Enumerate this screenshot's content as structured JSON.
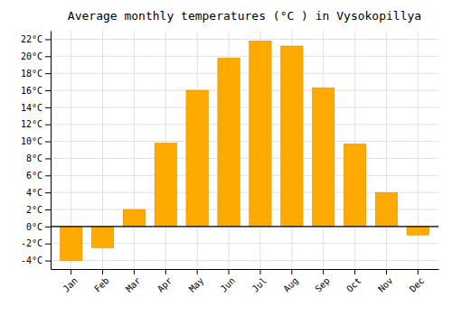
{
  "chart_data": {
    "type": "bar",
    "title": "Average monthly temperatures (°C ) in Vysokopillya",
    "categories": [
      "Jan",
      "Feb",
      "Mar",
      "Apr",
      "May",
      "Jun",
      "Jul",
      "Aug",
      "Sep",
      "Oct",
      "Nov",
      "Dec"
    ],
    "values": [
      -4,
      -2.5,
      2,
      9.8,
      16,
      19.8,
      21.8,
      21.2,
      16.3,
      9.7,
      4,
      -1
    ],
    "color": "#FFAA00",
    "ylim": [
      -5,
      23
    ],
    "yticks": [
      {
        "value": -4,
        "label": "-4°C"
      },
      {
        "value": -2,
        "label": "-2°C"
      },
      {
        "value": 0,
        "label": "0°C"
      },
      {
        "value": 2,
        "label": "2°C"
      },
      {
        "value": 4,
        "label": "4°C"
      },
      {
        "value": 6,
        "label": "6°C"
      },
      {
        "value": 8,
        "label": "8°C"
      },
      {
        "value": 10,
        "label": "10°C"
      },
      {
        "value": 12,
        "label": "12°C"
      },
      {
        "value": 14,
        "label": "14°C"
      },
      {
        "value": 16,
        "label": "16°C"
      },
      {
        "value": 18,
        "label": "18°C"
      },
      {
        "value": 20,
        "label": "20°C"
      },
      {
        "value": 22,
        "label": "22°C"
      }
    ],
    "grid": true
  }
}
